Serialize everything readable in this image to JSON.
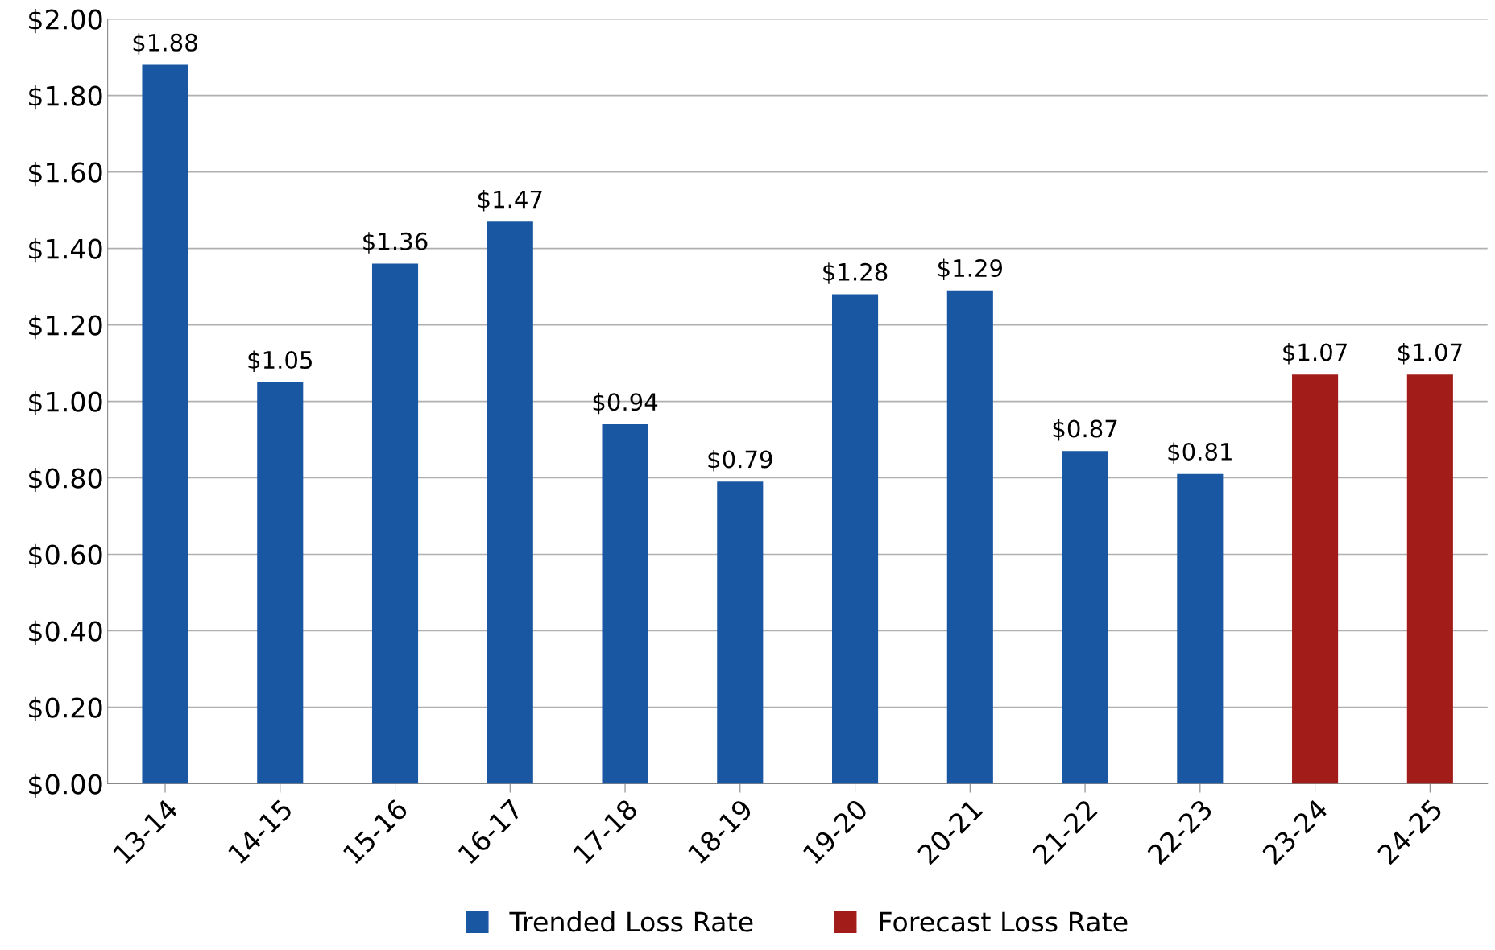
{
  "chart_data": {
    "type": "bar",
    "categories": [
      "13-14",
      "14-15",
      "15-16",
      "16-17",
      "17-18",
      "18-19",
      "19-20",
      "20-21",
      "21-22",
      "22-23",
      "23-24",
      "24-25"
    ],
    "series": [
      {
        "name": "Trended Loss Rate",
        "color": "#1957a3",
        "values": [
          1.88,
          1.05,
          1.36,
          1.47,
          0.94,
          0.79,
          1.28,
          1.29,
          0.87,
          0.81,
          null,
          null
        ],
        "value_labels": [
          "$1.88",
          "$1.05",
          "$1.36",
          "$1.47",
          "$0.94",
          "$0.79",
          "$1.28",
          "$1.29",
          "$0.87",
          "$0.81",
          null,
          null
        ]
      },
      {
        "name": "Forecast Loss Rate",
        "color": "#a21c1a",
        "values": [
          null,
          null,
          null,
          null,
          null,
          null,
          null,
          null,
          null,
          null,
          1.07,
          1.07
        ],
        "value_labels": [
          null,
          null,
          null,
          null,
          null,
          null,
          null,
          null,
          null,
          null,
          "$1.07",
          "$1.07"
        ]
      }
    ],
    "ylim": [
      0,
      2
    ],
    "yticks": [
      {
        "value": 0,
        "label": "$0.00"
      },
      {
        "value": 0.2,
        "label": "$0.20"
      },
      {
        "value": 0.4,
        "label": "$0.40"
      },
      {
        "value": 0.6,
        "label": "$0.60"
      },
      {
        "value": 0.8,
        "label": "$0.80"
      },
      {
        "value": 1.0,
        "label": "$1.00"
      },
      {
        "value": 1.2,
        "label": "$1.20"
      },
      {
        "value": 1.4,
        "label": "$1.40"
      },
      {
        "value": 1.6,
        "label": "$1.60"
      },
      {
        "value": 1.8,
        "label": "$1.80"
      },
      {
        "value": 2.0,
        "label": "$2.00"
      }
    ],
    "grid": "y",
    "legend": "bottom"
  }
}
